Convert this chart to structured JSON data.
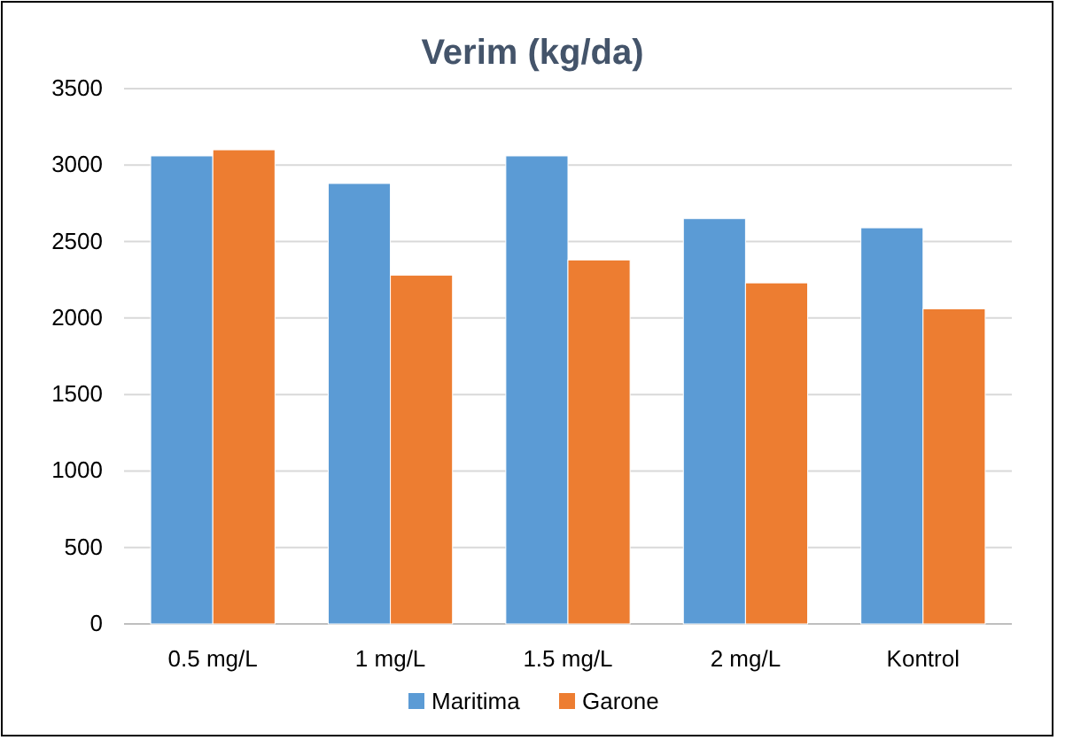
{
  "chart_data": {
    "type": "bar",
    "title": "Verim (kg/da)",
    "categories": [
      "0.5 mg/L",
      "1 mg/L",
      "1.5 mg/L",
      "2 mg/L",
      "Kontrol"
    ],
    "series": [
      {
        "name": "Maritima",
        "color": "#5b9bd5",
        "values": [
          3060,
          2880,
          3060,
          2650,
          2590
        ]
      },
      {
        "name": "Garone",
        "color": "#ed7d31",
        "values": [
          3100,
          2280,
          2380,
          2230,
          2060
        ]
      }
    ],
    "ylim": [
      0,
      3500
    ],
    "yticks": [
      0,
      500,
      1000,
      1500,
      2000,
      2500,
      3000,
      3500
    ],
    "grid": "y",
    "legend": "bottom"
  }
}
